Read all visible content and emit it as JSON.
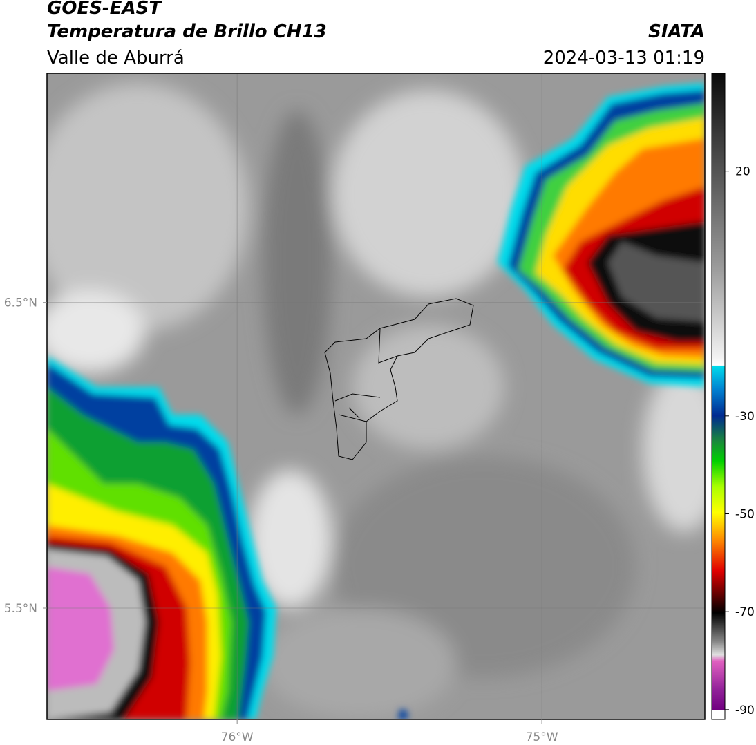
{
  "header": {
    "title": "GOES-EAST",
    "subtitle": "Temperatura de Brillo CH13",
    "region": "Valle de Aburrá",
    "source": "SIATA",
    "datetime": "2024-03-13 01:19"
  },
  "map": {
    "xlim": [
      -76.624,
      -74.465
    ],
    "ylim": [
      5.136,
      7.25
    ],
    "xticks": [
      {
        "value": -76,
        "label": "76°W"
      },
      {
        "value": -75,
        "label": "75°W"
      }
    ],
    "yticks": [
      {
        "value": 6.5,
        "label": "6.5°N"
      },
      {
        "value": 5.5,
        "label": "5.5°N"
      }
    ],
    "grid": true
  },
  "colorbar": {
    "range": [
      -92,
      40
    ],
    "ticks": [
      20,
      -30,
      -50,
      -70,
      -90
    ]
  }
}
